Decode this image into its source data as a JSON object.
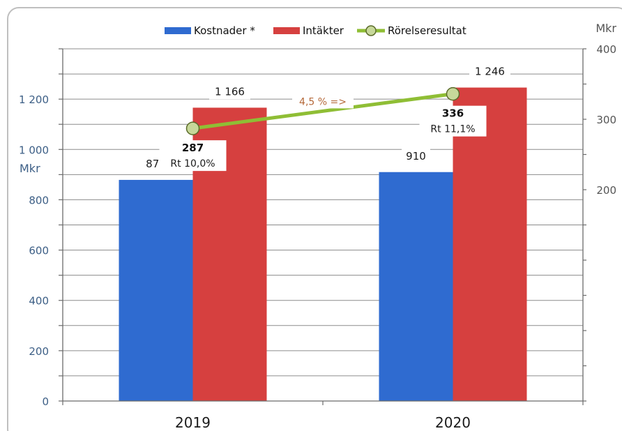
{
  "chart_data": {
    "type": "bar",
    "categories": [
      "2019",
      "2020"
    ],
    "series": [
      {
        "name": "Kostnader *",
        "type": "bar",
        "axis": "left",
        "color": "#2f6bd0",
        "values": [
          879,
          910
        ],
        "labels": [
          "879",
          "910"
        ]
      },
      {
        "name": "Intäkter",
        "type": "bar",
        "axis": "left",
        "color": "#d6403f",
        "values": [
          1166,
          1246
        ],
        "labels": [
          "1 166",
          "1 246"
        ]
      },
      {
        "name": "Rörelseresultat",
        "type": "line",
        "axis": "right",
        "color": "#8fbe35",
        "marker_fill": "#c7d89a",
        "values": [
          287,
          336
        ],
        "labels": [
          "287",
          "336"
        ],
        "sublabels": [
          "Rt 10,0%",
          "Rt 11,1%"
        ]
      }
    ],
    "left_axis": {
      "unit": "Mkr",
      "ylim": [
        0,
        1400
      ],
      "ticks": [
        0,
        200,
        400,
        600,
        800,
        1000,
        1200
      ],
      "tick_labels": [
        "0",
        "200",
        "400",
        "600",
        "800",
        "1 000",
        "1 200"
      ]
    },
    "right_axis": {
      "unit": "Mkr",
      "ylim": [
        -100,
        400
      ],
      "ticks": [
        200,
        300,
        400
      ],
      "tick_labels": [
        "200",
        "300",
        "400"
      ]
    },
    "annotation": "4,5 % =>",
    "legend_position": "top",
    "grid": true
  }
}
